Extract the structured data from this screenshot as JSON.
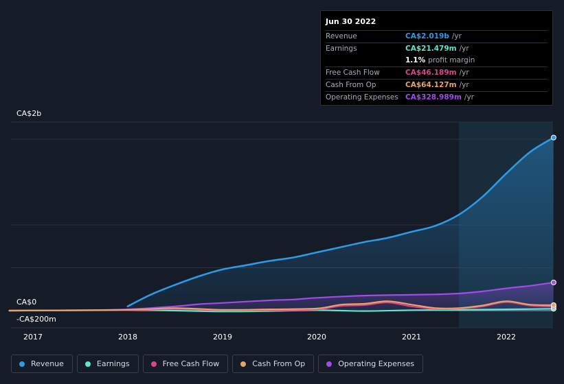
{
  "chart_data": {
    "type": "line",
    "x_ticks": [
      "2017",
      "2018",
      "2019",
      "2020",
      "2021",
      "2022"
    ],
    "y_labels": {
      "top": "CA$2b",
      "zero": "CA$0",
      "bottom": "-CA$200m"
    },
    "ylim": [
      -200,
      2000
    ],
    "series": [
      {
        "name": "Revenue",
        "color": "#2d9ae6",
        "fill": true,
        "points": [
          [
            2018.0,
            50
          ],
          [
            2018.25,
            190
          ],
          [
            2018.5,
            300
          ],
          [
            2018.75,
            400
          ],
          [
            2019.0,
            480
          ],
          [
            2019.25,
            530
          ],
          [
            2019.5,
            580
          ],
          [
            2019.75,
            620
          ],
          [
            2020.0,
            680
          ],
          [
            2020.25,
            740
          ],
          [
            2020.5,
            800
          ],
          [
            2020.75,
            850
          ],
          [
            2021.0,
            920
          ],
          [
            2021.25,
            990
          ],
          [
            2021.5,
            1120
          ],
          [
            2021.75,
            1330
          ],
          [
            2022.0,
            1600
          ],
          [
            2022.25,
            1850
          ],
          [
            2022.5,
            2019
          ]
        ]
      },
      {
        "name": "Earnings",
        "color": "#5ee6cf",
        "fill": false,
        "points": [
          [
            2016.75,
            0
          ],
          [
            2018.0,
            5
          ],
          [
            2018.5,
            0
          ],
          [
            2019.0,
            -10
          ],
          [
            2019.5,
            -5
          ],
          [
            2020.0,
            5
          ],
          [
            2020.5,
            -5
          ],
          [
            2021.0,
            5
          ],
          [
            2021.5,
            10
          ],
          [
            2022.0,
            15
          ],
          [
            2022.5,
            21.479
          ]
        ]
      },
      {
        "name": "Free Cash Flow",
        "color": "#d9468c",
        "fill": false,
        "points": [
          [
            2016.75,
            0
          ],
          [
            2018.0,
            5
          ],
          [
            2018.5,
            20
          ],
          [
            2019.0,
            5
          ],
          [
            2019.5,
            5
          ],
          [
            2020.0,
            15
          ],
          [
            2020.25,
            55
          ],
          [
            2020.5,
            65
          ],
          [
            2020.75,
            95
          ],
          [
            2021.0,
            50
          ],
          [
            2021.25,
            20
          ],
          [
            2021.5,
            25
          ],
          [
            2021.75,
            50
          ],
          [
            2022.0,
            100
          ],
          [
            2022.25,
            60
          ],
          [
            2022.5,
            46.189
          ]
        ]
      },
      {
        "name": "Cash From Op",
        "color": "#e8a366",
        "fill": false,
        "points": [
          [
            2016.75,
            0
          ],
          [
            2018.0,
            10
          ],
          [
            2018.5,
            30
          ],
          [
            2019.0,
            10
          ],
          [
            2019.5,
            15
          ],
          [
            2020.0,
            25
          ],
          [
            2020.25,
            70
          ],
          [
            2020.5,
            80
          ],
          [
            2020.75,
            110
          ],
          [
            2021.0,
            70
          ],
          [
            2021.25,
            30
          ],
          [
            2021.5,
            30
          ],
          [
            2021.75,
            60
          ],
          [
            2022.0,
            110
          ],
          [
            2022.25,
            70
          ],
          [
            2022.5,
            64.127
          ]
        ]
      },
      {
        "name": "Operating Expenses",
        "color": "#a24bea",
        "fill": true,
        "points": [
          [
            2016.75,
            0
          ],
          [
            2017.5,
            5
          ],
          [
            2018.0,
            15
          ],
          [
            2018.5,
            50
          ],
          [
            2018.75,
            75
          ],
          [
            2019.0,
            90
          ],
          [
            2019.5,
            120
          ],
          [
            2019.75,
            130
          ],
          [
            2020.0,
            150
          ],
          [
            2020.5,
            175
          ],
          [
            2021.0,
            185
          ],
          [
            2021.25,
            190
          ],
          [
            2021.5,
            200
          ],
          [
            2021.75,
            225
          ],
          [
            2022.0,
            260
          ],
          [
            2022.25,
            290
          ],
          [
            2022.5,
            328.989
          ]
        ]
      }
    ],
    "highlight_from": 2021.5,
    "grid": true
  },
  "tooltip": {
    "date": "Jun 30 2022",
    "rows": [
      {
        "label": "Revenue",
        "value": "CA$2.019b",
        "unit": "/yr",
        "color": "#2d9ae6"
      },
      {
        "label": "Earnings",
        "value": "CA$21.479m",
        "unit": "/yr",
        "color": "#5ee6cf"
      },
      {
        "label": "",
        "value": "1.1%",
        "unit": "profit margin",
        "color": "#ffffff"
      },
      {
        "label": "Free Cash Flow",
        "value": "CA$46.189m",
        "unit": "/yr",
        "color": "#d9468c"
      },
      {
        "label": "Cash From Op",
        "value": "CA$64.127m",
        "unit": "/yr",
        "color": "#e8a366"
      },
      {
        "label": "Operating Expenses",
        "value": "CA$328.989m",
        "unit": "/yr",
        "color": "#a24bea"
      }
    ]
  },
  "legend": [
    {
      "label": "Revenue",
      "color": "#2d9ae6"
    },
    {
      "label": "Earnings",
      "color": "#5ee6cf"
    },
    {
      "label": "Free Cash Flow",
      "color": "#d9468c"
    },
    {
      "label": "Cash From Op",
      "color": "#e8a366"
    },
    {
      "label": "Operating Expenses",
      "color": "#a24bea"
    }
  ]
}
